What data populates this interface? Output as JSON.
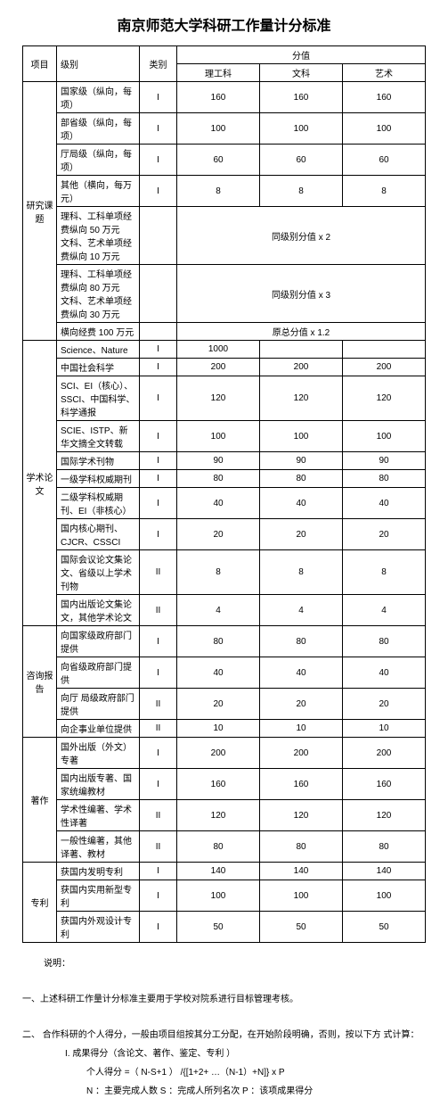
{
  "title": "南京师范大学科研工作量计分标准",
  "headers": {
    "project": "项目",
    "level": "级别",
    "category": "类别",
    "score": "分值",
    "sci": "理工科",
    "hum": "文科",
    "art": "艺术"
  },
  "sections": [
    {
      "name": "研究课题",
      "rows": [
        {
          "level": "国家级（纵向，每项）",
          "cat": "I",
          "v": [
            "160",
            "160",
            "160"
          ]
        },
        {
          "level": "部省级（纵向，每项）",
          "cat": "I",
          "v": [
            "100",
            "100",
            "100"
          ]
        },
        {
          "level": "厅局级（纵向，每项）",
          "cat": "I",
          "v": [
            "60",
            "60",
            "60"
          ]
        },
        {
          "level": "其他（横向，每万元）",
          "cat": "I",
          "v": [
            "8",
            "8",
            "8"
          ]
        },
        {
          "level": "理科、工科单项经费纵向  50 万元\n文科、艺术单项经费纵向  10 万元",
          "cat": "",
          "note": "同级别分值 x 2"
        },
        {
          "level": "理科、工科单项经费纵向  80 万元\n文科、艺术单项经费纵向  30 万元",
          "cat": "",
          "note": "同级别分值 x 3"
        },
        {
          "level": "横向经费 100 万元",
          "cat": "",
          "note": "原总分值 x 1.2"
        }
      ]
    },
    {
      "name": "学术论文",
      "rows": [
        {
          "level": "Science、Nature",
          "cat": "I",
          "v": [
            "1000",
            "",
            ""
          ]
        },
        {
          "level": "中国社会科学",
          "cat": "I",
          "v": [
            "200",
            "200",
            "200"
          ]
        },
        {
          "level": "SCI、EI（核心）、SSCI、中国科学、科学通报",
          "cat": "I",
          "v": [
            "120",
            "120",
            "120"
          ]
        },
        {
          "level": "SCIE、ISTP、新华文摘全文转载",
          "cat": "I",
          "v": [
            "100",
            "100",
            "100"
          ]
        },
        {
          "level": "国际学术刊物",
          "cat": "I",
          "v": [
            "90",
            "90",
            "90"
          ]
        },
        {
          "level": "一级学科权威期刊",
          "cat": "I",
          "v": [
            "80",
            "80",
            "80"
          ]
        },
        {
          "level": "二级学科权威期刊、EI（非核心）",
          "cat": "I",
          "v": [
            "40",
            "40",
            "40"
          ]
        },
        {
          "level": "国内核心期刊、CJCR、CSSCI",
          "cat": "I",
          "v": [
            "20",
            "20",
            "20"
          ]
        },
        {
          "level": "国际会议论文集论文、省级以上学术刊物",
          "cat": "II",
          "v": [
            "8",
            "8",
            "8"
          ]
        },
        {
          "level": "国内出版论文集论文，其他学术论文",
          "cat": "II",
          "v": [
            "4",
            "4",
            "4"
          ]
        }
      ]
    },
    {
      "name": "咨询报告",
      "rows": [
        {
          "level": "向国家级政府部门提供",
          "cat": "I",
          "v": [
            "80",
            "80",
            "80"
          ]
        },
        {
          "level": "向省级政府部门提供",
          "cat": "I",
          "v": [
            "40",
            "40",
            "40"
          ]
        },
        {
          "level": "向厅 局级政府部门提供",
          "cat": "II",
          "v": [
            "20",
            "20",
            "20"
          ]
        },
        {
          "level": "向企事业单位提供",
          "cat": "II",
          "v": [
            "10",
            "10",
            "10"
          ]
        }
      ]
    },
    {
      "name": "著作",
      "rows": [
        {
          "level": "国外出版（外文）专著",
          "cat": "I",
          "v": [
            "200",
            "200",
            "200"
          ]
        },
        {
          "level": "国内出版专著、国家统编教材",
          "cat": "I",
          "v": [
            "160",
            "160",
            "160"
          ]
        },
        {
          "level": "学术性编著、学术性译著",
          "cat": "II",
          "v": [
            "120",
            "120",
            "120"
          ]
        },
        {
          "level": "一般性编著，其他译著、教材",
          "cat": "II",
          "v": [
            "80",
            "80",
            "80"
          ]
        }
      ]
    },
    {
      "name": "专利",
      "rows": [
        {
          "level": "获国内发明专利",
          "cat": "I",
          "v": [
            "140",
            "140",
            "140"
          ]
        },
        {
          "level": "获国内实用新型专利",
          "cat": "I",
          "v": [
            "100",
            "100",
            "100"
          ]
        },
        {
          "level": "获国内外观设计专利",
          "cat": "I",
          "v": [
            "50",
            "50",
            "50"
          ]
        }
      ]
    }
  ],
  "notes": {
    "explain": "说明：",
    "n1": "一、上述科研工作量计分标准主要用于学校对院系进行目标管理考核。",
    "n2": "二、 合作科研的个人得分，一般由项目组按其分工分配，在开始阶段明确，否则，按以下方 式计算：",
    "n3": "I.  成果得分（含论文、著作、鉴定、专利 ）",
    "n4": "个人得分 =（  N-S+1 ） /{[1+2+ …（N-1）+N]}  x P",
    "n5": "N ：主要完成人数      S ：完成人所列名次         P ：该项成果得分"
  }
}
